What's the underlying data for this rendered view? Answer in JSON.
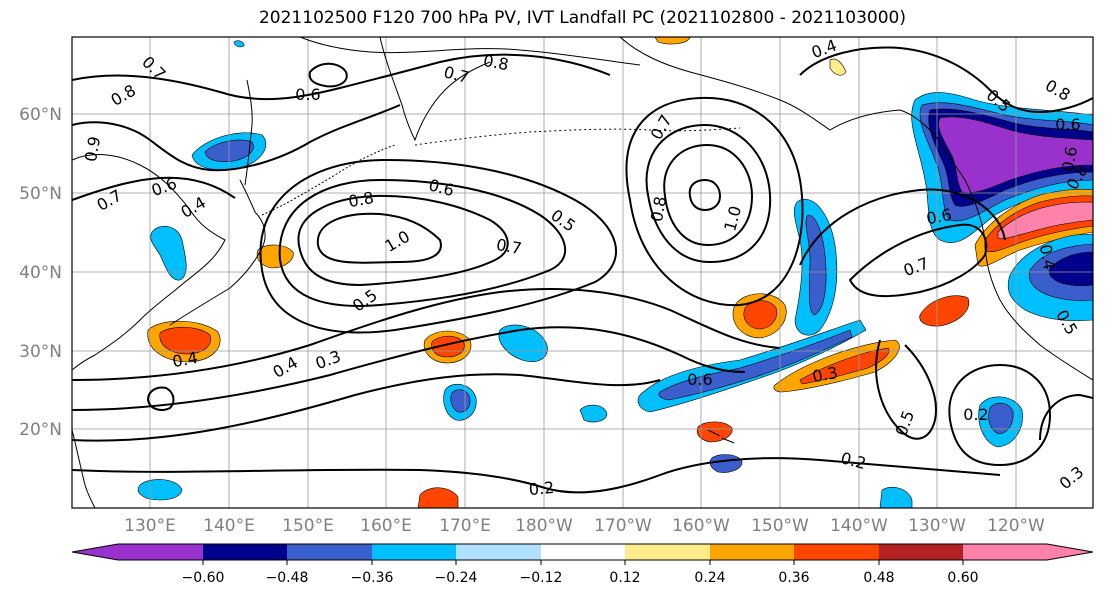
{
  "title": "2021102500 F120 700 hPa PV, IVT Landfall PC (2021102800 - 2021103000)",
  "map": {
    "lon_labels": [
      "130°E",
      "140°E",
      "150°E",
      "160°E",
      "170°E",
      "180°W",
      "170°W",
      "160°W",
      "150°W",
      "140°W",
      "130°W",
      "120°W"
    ],
    "lat_labels": [
      "60°N",
      "50°N",
      "40°N",
      "30°N",
      "20°N"
    ],
    "colorbar": {
      "tick_labels": [
        "−0.60",
        "−0.48",
        "−0.36",
        "−0.24",
        "−0.12",
        "0.12",
        "0.24",
        "0.36",
        "0.48",
        "0.60"
      ],
      "colors": [
        "#9932cc",
        "#00008b",
        "#3a5fcd",
        "#00bfff",
        "#b0e2ff",
        "#ffffff",
        "#ffec8b",
        "#ffa500",
        "#ff4500",
        "#b22222",
        "#ff82ab"
      ]
    },
    "contour_labels": [
      "0.7",
      "0.8",
      "0.6",
      "0.7",
      "0.8",
      "0.4",
      "0.8",
      "0.6",
      "0.5",
      "0.9",
      "0.7",
      "0.6",
      "0.4",
      "0.6",
      "0.8",
      "1.0",
      "0.5",
      "0.7",
      "0.7",
      "0.8",
      "1.0",
      "0.5",
      "0.4",
      "0.3",
      "0.4",
      "0.3",
      "0.2",
      "0.2",
      "0.5",
      "0.2",
      "0.3",
      "0.6",
      "0.6",
      "0.7",
      "0.4",
      "0.8",
      "0.5",
      "0.6"
    ]
  }
}
